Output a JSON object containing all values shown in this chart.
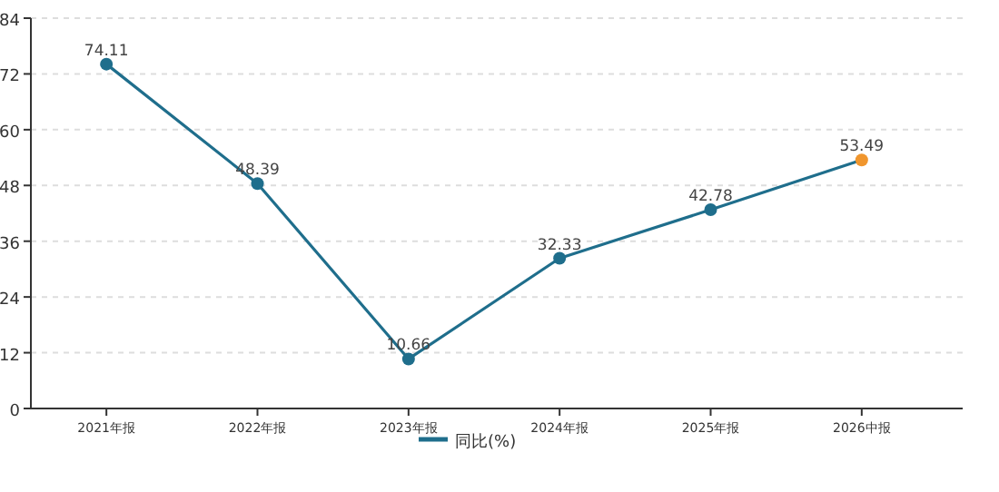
{
  "chart_data": {
    "type": "line",
    "categories": [
      "2021年报",
      "2022年报",
      "2023年报",
      "2024年报",
      "2025年报",
      "2026中报"
    ],
    "series": [
      {
        "name": "同比(%)",
        "color": "#1f6e8c",
        "colors": [
          "#1f6e8c",
          "#1f6e8c",
          "#1f6e8c",
          "#1f6e8c",
          "#1f6e8c",
          "#f0962e"
        ],
        "values": [
          74.11,
          48.39,
          10.66,
          32.33,
          42.78,
          53.49
        ]
      }
    ],
    "ylim": [
      0,
      84
    ],
    "yticks": [
      0,
      12,
      24,
      36,
      48,
      60,
      72,
      84
    ],
    "grid": "y",
    "legend": "bottom",
    "marker": "circle",
    "data_labels": true
  }
}
